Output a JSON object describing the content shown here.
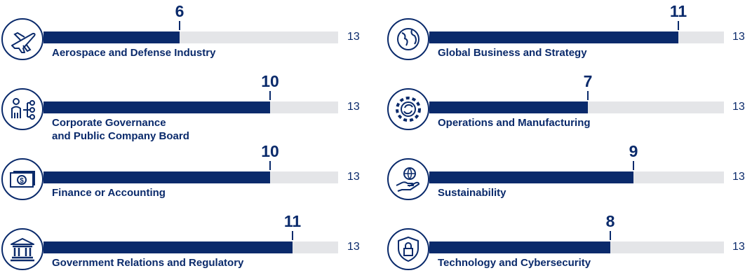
{
  "chart_data": {
    "type": "bar",
    "orientation": "horizontal",
    "title": "",
    "max": 13,
    "series": [
      {
        "name": "Aerospace and Defense Industry",
        "value": 6,
        "total": 13,
        "icon": "airplane-icon",
        "label_lines": [
          "Aerospace and Defense Industry"
        ]
      },
      {
        "name": "Corporate Governance and Public Company Board",
        "value": 10,
        "total": 13,
        "icon": "org-chart-person-icon",
        "label_lines": [
          "Corporate Governance",
          "and Public Company Board"
        ]
      },
      {
        "name": "Finance or Accounting",
        "value": 10,
        "total": 13,
        "icon": "money-bill-icon",
        "label_lines": [
          "Finance or Accounting"
        ]
      },
      {
        "name": "Government Relations and Regulatory",
        "value": 11,
        "total": 13,
        "icon": "government-building-icon",
        "label_lines": [
          "Government Relations and Regulatory"
        ]
      },
      {
        "name": "Global Business and Strategy",
        "value": 11,
        "total": 13,
        "icon": "globe-icon",
        "label_lines": [
          "Global Business and Strategy"
        ]
      },
      {
        "name": "Operations and Manufacturing",
        "value": 7,
        "total": 13,
        "icon": "gear-icon",
        "label_lines": [
          "Operations and Manufacturing"
        ]
      },
      {
        "name": "Sustainability",
        "value": 9,
        "total": 13,
        "icon": "hand-globe-icon",
        "label_lines": [
          "Sustainability"
        ]
      },
      {
        "name": "Technology and Cybersecurity",
        "value": 8,
        "total": 13,
        "icon": "shield-lock-icon",
        "label_lines": [
          "Technology and Cybersecurity"
        ]
      }
    ]
  },
  "colors": {
    "fill": "#0a2a6b",
    "track": "#e4e5e8",
    "text": "#0a2a6b"
  }
}
